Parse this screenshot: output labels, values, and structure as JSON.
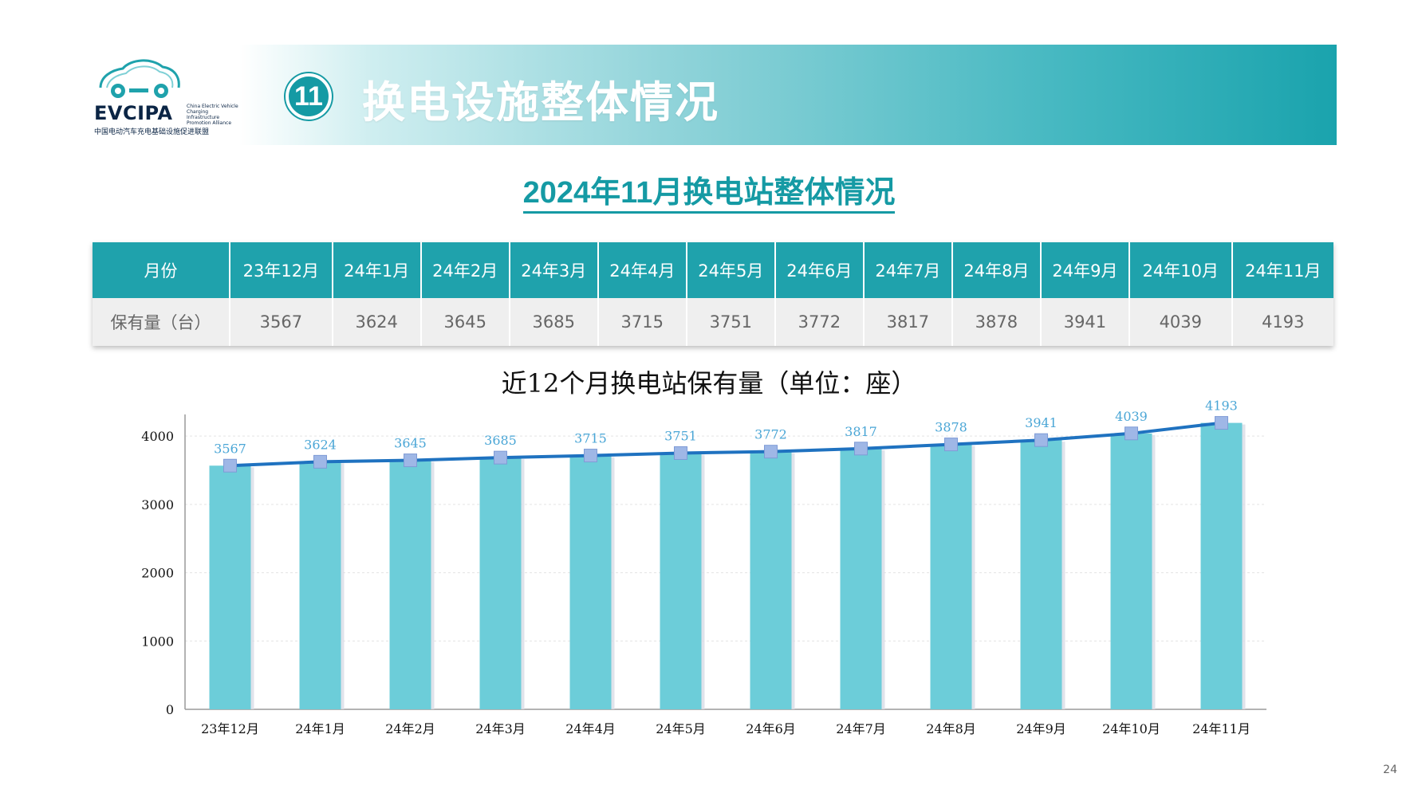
{
  "logo": {
    "name": "EVCIPA",
    "subtitle": "China Electric Vehicle Charging Infrastructure Promotion Alliance",
    "cn_name": "中国电动汽车充电基础设施促进联盟"
  },
  "header": {
    "number": "11",
    "title": "换电设施整体情况"
  },
  "section_title": "2024年11月换电站整体情况",
  "table": {
    "row_header_1": "月份",
    "row_header_2": "保有量（台）",
    "months": [
      "23年12月",
      "24年1月",
      "24年2月",
      "24年3月",
      "24年4月",
      "24年5月",
      "24年6月",
      "24年7月",
      "24年8月",
      "24年9月",
      "24年10月",
      "24年11月"
    ],
    "values": [
      "3567",
      "3624",
      "3645",
      "3685",
      "3715",
      "3751",
      "3772",
      "3817",
      "3878",
      "3941",
      "4039",
      "4193"
    ]
  },
  "chart_title": "近12个月换电站保有量（单位：座）",
  "chart_data": {
    "type": "bar",
    "categories": [
      "23年12月",
      "24年1月",
      "24年2月",
      "24年3月",
      "24年4月",
      "24年5月",
      "24年6月",
      "24年7月",
      "24年8月",
      "24年9月",
      "24年10月",
      "24年11月"
    ],
    "series": [
      {
        "type": "bar",
        "values": [
          3567,
          3624,
          3645,
          3685,
          3715,
          3751,
          3772,
          3817,
          3878,
          3941,
          4039,
          4193
        ],
        "color": "#6ccdd9"
      },
      {
        "type": "line",
        "values": [
          3567,
          3624,
          3645,
          3685,
          3715,
          3751,
          3772,
          3817,
          3878,
          3941,
          4039,
          4193
        ],
        "color": "#1f72c0",
        "marker_color": "#9fb7e6"
      }
    ],
    "ylim": [
      0,
      4200
    ],
    "yticks": [
      0,
      1000,
      2000,
      3000,
      4000
    ],
    "data_label_color": "#4aa6d6",
    "grid": true
  },
  "page_number": "24"
}
